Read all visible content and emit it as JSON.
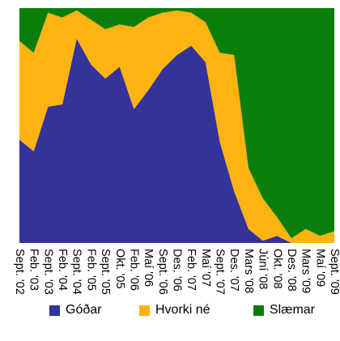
{
  "chart_data": {
    "type": "area",
    "stacked": true,
    "normalized_percent": true,
    "ylim": [
      0,
      100
    ],
    "x": [
      "Sept. '02",
      "Feb. '03",
      "Sept. '03",
      "Feb. '04",
      "Sept. '04",
      "Feb. '05",
      "Sept. '05",
      "Okt. '05",
      "Feb. '06",
      "Maí '06",
      "Sept. '06",
      "Des. '06",
      "Feb. '07",
      "Maí '07",
      "Sept. '07",
      "Des. '07",
      "Mars '08",
      "Júní '08",
      "Okt. '08",
      "Des. '08",
      "Mars '09",
      "Maí '09",
      "Sept. '09"
    ],
    "series": [
      {
        "name": "Góðar",
        "color": "#333399",
        "values": [
          44,
          39,
          58,
          59,
          87,
          76,
          70,
          75,
          57,
          65,
          74,
          80,
          84,
          77,
          43,
          22,
          6,
          1,
          3,
          0,
          0,
          0,
          0
        ]
      },
      {
        "name": "Hvorki né",
        "color": "#ffb310",
        "values": [
          42,
          42,
          40,
          37,
          12,
          19,
          21,
          18,
          35,
          31,
          24,
          19,
          14,
          17,
          38,
          58,
          26,
          18,
          8,
          2,
          6,
          3,
          5
        ]
      },
      {
        "name": "Slæmar",
        "color": "#0b7d0b",
        "values": [
          14,
          19,
          2,
          4,
          1,
          5,
          9,
          7,
          8,
          4,
          2,
          1,
          2,
          6,
          19,
          20,
          68,
          81,
          89,
          98,
          94,
          97,
          95
        ]
      }
    ],
    "legend_position": "bottom",
    "grid": false
  }
}
